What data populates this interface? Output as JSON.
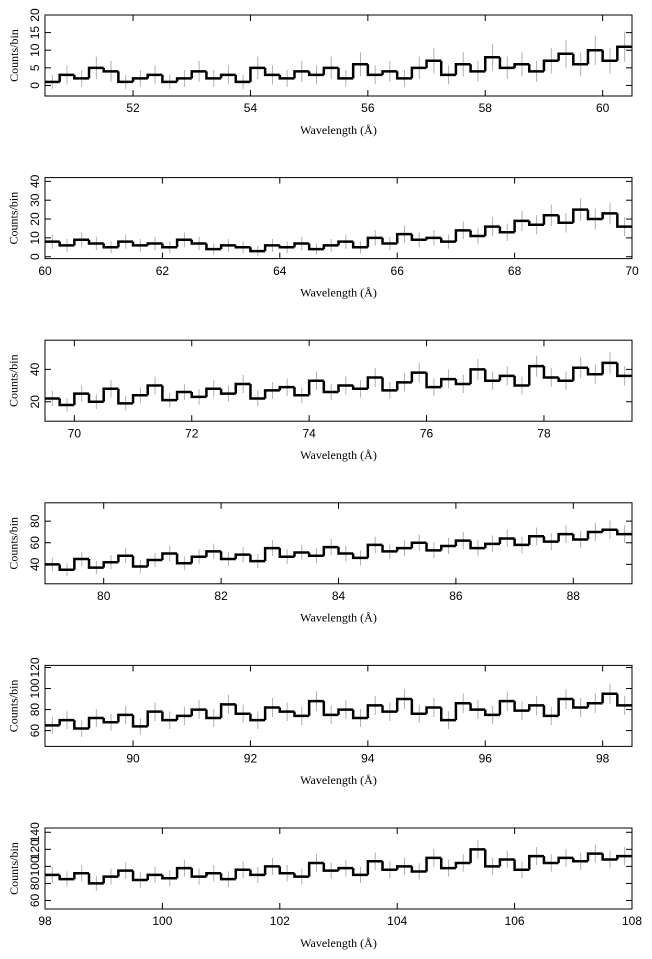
{
  "chart_data": [
    {
      "type": "histogram",
      "xlabel": "Wavelength (Å)",
      "ylabel": "Counts/bin",
      "color": "#000000",
      "error_color": "#b0b0b0",
      "xlim": [
        50.5,
        60.5
      ],
      "xticks": [
        52,
        54,
        56,
        58,
        60
      ],
      "ylim": [
        -3,
        20
      ],
      "yticks": [
        0,
        5,
        10,
        15,
        20
      ],
      "bins": [
        50.5,
        50.75,
        51,
        51.25,
        51.5,
        51.75,
        52,
        52.25,
        52.5,
        52.75,
        53,
        53.25,
        53.5,
        53.75,
        54,
        54.25,
        54.5,
        54.75,
        55,
        55.25,
        55.5,
        55.75,
        56,
        56.25,
        56.5,
        56.75,
        57,
        57.25,
        57.5,
        57.75,
        58,
        58.25,
        58.5,
        58.75,
        59,
        59.25,
        59.5,
        59.75,
        60,
        60.25,
        60.5
      ],
      "values": [
        1,
        3,
        2,
        5,
        4,
        1,
        2,
        3,
        1,
        2,
        4,
        2,
        3,
        1,
        5,
        3,
        2,
        4,
        3,
        5,
        2,
        6,
        3,
        4,
        2,
        5,
        7,
        3,
        6,
        4,
        8,
        5,
        6,
        4,
        7,
        9,
        6,
        10,
        7,
        11
      ],
      "errors": [
        2,
        2.7,
        2.4,
        3.2,
        3,
        2,
        2.4,
        2.7,
        2,
        2.4,
        3,
        2.4,
        2.7,
        2,
        3.2,
        2.7,
        2.4,
        3,
        2.7,
        3.2,
        2.4,
        3.4,
        2.7,
        3,
        2.4,
        3.2,
        3.6,
        2.7,
        3.4,
        3,
        3.8,
        3.2,
        3.4,
        3,
        3.6,
        4,
        3.4,
        4.2,
        3.6,
        4.3
      ]
    },
    {
      "type": "histogram",
      "xlabel": "Wavelength (Å)",
      "ylabel": "Counts/bin",
      "color": "#000000",
      "error_color": "#b0b0b0",
      "xlim": [
        60,
        70
      ],
      "xticks": [
        60,
        62,
        64,
        66,
        68,
        70
      ],
      "ylim": [
        -1,
        42
      ],
      "yticks": [
        0,
        10,
        20,
        30,
        40
      ],
      "bins": [
        60,
        60.25,
        60.5,
        60.75,
        61,
        61.25,
        61.5,
        61.75,
        62,
        62.25,
        62.5,
        62.75,
        63,
        63.25,
        63.5,
        63.75,
        64,
        64.25,
        64.5,
        64.75,
        65,
        65.25,
        65.5,
        65.75,
        66,
        66.25,
        66.5,
        66.75,
        67,
        67.25,
        67.5,
        67.75,
        68,
        68.25,
        68.5,
        68.75,
        69,
        69.25,
        69.5,
        69.75,
        70
      ],
      "values": [
        8,
        6,
        9,
        7,
        5,
        8,
        6,
        7,
        5,
        9,
        7,
        4,
        6,
        5,
        3,
        6,
        5,
        7,
        4,
        6,
        8,
        5,
        10,
        7,
        12,
        9,
        10,
        8,
        14,
        11,
        16,
        13,
        19,
        17,
        22,
        18,
        25,
        20,
        23,
        16
      ],
      "errors": [
        3.8,
        3.4,
        4,
        3.6,
        3.2,
        3.8,
        3.4,
        3.6,
        3.2,
        4,
        3.6,
        3,
        3.4,
        3.2,
        2.7,
        3.4,
        3.2,
        3.6,
        3,
        3.4,
        3.8,
        3.2,
        4.2,
        3.6,
        4.5,
        4,
        4.2,
        3.8,
        4.7,
        4.3,
        5,
        4.6,
        5.4,
        5.1,
        5.7,
        5.2,
        6,
        5.5,
        5.8,
        5
      ]
    },
    {
      "type": "histogram",
      "xlabel": "Wavelength (Å)",
      "ylabel": "Counts/bin",
      "color": "#000000",
      "error_color": "#b0b0b0",
      "xlim": [
        69.5,
        79.5
      ],
      "xticks": [
        70,
        72,
        74,
        76,
        78
      ],
      "ylim": [
        8,
        58
      ],
      "yticks": [
        20,
        40
      ],
      "bins": [
        69.5,
        69.75,
        70,
        70.25,
        70.5,
        70.75,
        71,
        71.25,
        71.5,
        71.75,
        72,
        72.25,
        72.5,
        72.75,
        73,
        73.25,
        73.5,
        73.75,
        74,
        74.25,
        74.5,
        74.75,
        75,
        75.25,
        75.5,
        75.75,
        76,
        76.25,
        76.5,
        76.75,
        77,
        77.25,
        77.5,
        77.75,
        78,
        78.25,
        78.5,
        78.75,
        79,
        79.25,
        79.5
      ],
      "values": [
        22,
        18,
        25,
        20,
        28,
        19,
        24,
        30,
        21,
        26,
        23,
        28,
        25,
        31,
        22,
        27,
        29,
        24,
        33,
        26,
        30,
        28,
        35,
        27,
        32,
        38,
        29,
        34,
        31,
        40,
        33,
        36,
        30,
        42,
        35,
        33,
        41,
        37,
        44,
        36
      ],
      "errors": [
        4.7,
        4.2,
        5,
        4.5,
        5.3,
        4.4,
        4.9,
        5.5,
        4.6,
        5.1,
        4.8,
        5.3,
        5,
        5.6,
        4.7,
        5.2,
        5.4,
        4.9,
        5.7,
        5.1,
        5.5,
        5.3,
        5.9,
        5.2,
        5.7,
        6.2,
        5.4,
        5.8,
        5.6,
        6.3,
        5.7,
        6,
        5.5,
        6.5,
        5.9,
        5.7,
        6.4,
        6.1,
        6.6,
        6
      ]
    },
    {
      "type": "histogram",
      "xlabel": "Wavelength (Å)",
      "ylabel": "Counts/bin",
      "color": "#000000",
      "error_color": "#b0b0b0",
      "xlim": [
        79,
        89
      ],
      "xticks": [
        80,
        82,
        84,
        86,
        88
      ],
      "ylim": [
        22,
        97
      ],
      "yticks": [
        40,
        60,
        80
      ],
      "bins": [
        79,
        79.25,
        79.5,
        79.75,
        80,
        80.25,
        80.5,
        80.75,
        81,
        81.25,
        81.5,
        81.75,
        82,
        82.25,
        82.5,
        82.75,
        83,
        83.25,
        83.5,
        83.75,
        84,
        84.25,
        84.5,
        84.75,
        85,
        85.25,
        85.5,
        85.75,
        86,
        86.25,
        86.5,
        86.75,
        87,
        87.25,
        87.5,
        87.75,
        88,
        88.25,
        88.5,
        88.75,
        89
      ],
      "values": [
        40,
        35,
        45,
        37,
        42,
        48,
        38,
        44,
        50,
        41,
        47,
        52,
        45,
        49,
        43,
        55,
        47,
        51,
        48,
        56,
        50,
        46,
        58,
        52,
        55,
        60,
        53,
        57,
        62,
        55,
        59,
        64,
        58,
        66,
        61,
        68,
        63,
        70,
        72,
        68
      ],
      "errors": [
        6.3,
        5.9,
        6.7,
        6.1,
        6.5,
        6.9,
        6.2,
        6.6,
        7.1,
        6.4,
        6.9,
        7.2,
        6.7,
        7,
        6.6,
        7.4,
        6.9,
        7.1,
        6.9,
        7.5,
        7.1,
        6.8,
        7.6,
        7.2,
        7.4,
        7.7,
        7.3,
        7.5,
        7.9,
        7.4,
        7.7,
        8,
        7.6,
        8.1,
        7.8,
        8.2,
        7.9,
        8.4,
        8.5,
        8.2
      ]
    },
    {
      "type": "histogram",
      "xlabel": "Wavelength (Å)",
      "ylabel": "Counts/bin",
      "color": "#000000",
      "error_color": "#b0b0b0",
      "xlim": [
        88.5,
        98.5
      ],
      "xticks": [
        90,
        92,
        94,
        96,
        98
      ],
      "ylim": [
        45,
        122
      ],
      "yticks": [
        60,
        80,
        100,
        120
      ],
      "bins": [
        88.5,
        88.75,
        89,
        89.25,
        89.5,
        89.75,
        90,
        90.25,
        90.5,
        90.75,
        91,
        91.25,
        91.5,
        91.75,
        92,
        92.25,
        92.5,
        92.75,
        93,
        93.25,
        93.5,
        93.75,
        94,
        94.25,
        94.5,
        94.75,
        95,
        95.25,
        95.5,
        95.75,
        96,
        96.25,
        96.5,
        96.75,
        97,
        97.25,
        97.5,
        97.75,
        98,
        98.25,
        98.5
      ],
      "values": [
        65,
        70,
        62,
        72,
        68,
        75,
        64,
        78,
        70,
        74,
        80,
        72,
        85,
        76,
        70,
        82,
        78,
        74,
        88,
        75,
        80,
        72,
        84,
        78,
        90,
        76,
        82,
        70,
        86,
        80,
        75,
        88,
        79,
        84,
        74,
        90,
        82,
        86,
        95,
        84
      ],
      "errors": [
        8.1,
        8.4,
        7.9,
        8.5,
        8.2,
        8.7,
        8,
        8.8,
        8.4,
        8.6,
        8.9,
        8.5,
        9.2,
        8.7,
        8.4,
        9.1,
        8.8,
        8.6,
        9.4,
        8.7,
        8.9,
        8.5,
        9.2,
        8.8,
        9.5,
        8.7,
        9.1,
        8.4,
        9.3,
        8.9,
        8.7,
        9.4,
        8.9,
        9.2,
        8.6,
        9.5,
        9.1,
        9.3,
        9.7,
        9.2
      ]
    },
    {
      "type": "histogram",
      "xlabel": "Wavelength (Å)",
      "ylabel": "Counts/bin",
      "color": "#000000",
      "error_color": "#b0b0b0",
      "xlim": [
        98,
        108
      ],
      "xticks": [
        98,
        100,
        102,
        104,
        106,
        108
      ],
      "ylim": [
        50,
        145
      ],
      "yticks": [
        60,
        80,
        100,
        120,
        140
      ],
      "bins": [
        98,
        98.25,
        98.5,
        98.75,
        99,
        99.25,
        99.5,
        99.75,
        100,
        100.25,
        100.5,
        100.75,
        101,
        101.25,
        101.5,
        101.75,
        102,
        102.25,
        102.5,
        102.75,
        103,
        103.25,
        103.5,
        103.75,
        104,
        104.25,
        104.5,
        104.75,
        105,
        105.25,
        105.5,
        105.75,
        106,
        106.25,
        106.5,
        106.75,
        107,
        107.25,
        107.5,
        107.75,
        108
      ],
      "values": [
        90,
        85,
        92,
        80,
        88,
        95,
        84,
        90,
        86,
        98,
        88,
        92,
        85,
        96,
        90,
        100,
        92,
        88,
        104,
        95,
        98,
        90,
        106,
        96,
        100,
        94,
        110,
        98,
        104,
        120,
        100,
        108,
        96,
        112,
        104,
        110,
        106,
        115,
        108,
        112
      ],
      "errors": [
        9.5,
        9.2,
        9.6,
        8.9,
        9.4,
        9.7,
        9.2,
        9.5,
        9.3,
        9.9,
        9.4,
        9.6,
        9.2,
        9.8,
        9.5,
        10,
        9.6,
        9.4,
        10.2,
        9.7,
        9.9,
        9.5,
        10.3,
        9.8,
        10,
        9.7,
        10.5,
        9.9,
        10.2,
        11,
        10,
        10.4,
        9.8,
        10.6,
        10.2,
        10.5,
        10.3,
        10.7,
        10.4,
        10.6
      ]
    }
  ]
}
